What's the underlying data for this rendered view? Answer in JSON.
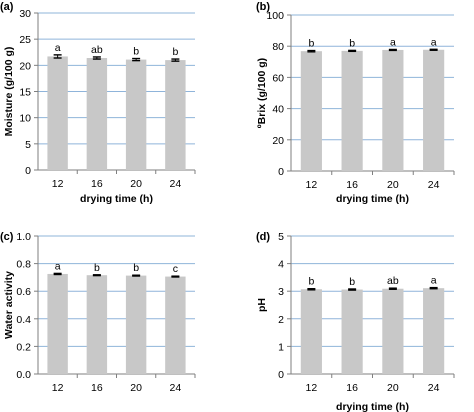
{
  "colors": {
    "bar": "#c8c8c8",
    "gridline": "#8fb4da",
    "axis": "#7f7f7f",
    "errorbar": "#000000"
  },
  "chart_data": [
    {
      "panel": "(a)",
      "type": "bar",
      "categories": [
        "12",
        "16",
        "20",
        "24"
      ],
      "values": [
        21.7,
        21.4,
        21.1,
        21.0
      ],
      "errors": [
        0.3,
        0.2,
        0.2,
        0.2
      ],
      "significance": [
        "a",
        "ab",
        "b",
        "b"
      ],
      "xlabel": "drying time (h)",
      "ylabel": "Moisture (g/100 g)",
      "ylim": [
        0,
        30
      ],
      "yticks": [
        "0",
        "5",
        "10",
        "15",
        "20",
        "25",
        "30"
      ],
      "grid": true
    },
    {
      "panel": "(b)",
      "type": "bar",
      "categories": [
        "12",
        "16",
        "20",
        "24"
      ],
      "values": [
        76.8,
        77.0,
        77.6,
        77.7
      ],
      "errors": [
        0.4,
        0.3,
        0.3,
        0.3
      ],
      "significance": [
        "b",
        "b",
        "a",
        "a"
      ],
      "xlabel": "drying time (h)",
      "ylabel": "ºBrix (g/100 g)",
      "ylim": [
        0,
        100
      ],
      "yticks": [
        "0",
        "20",
        "40",
        "60",
        "80",
        "100"
      ],
      "grid": true
    },
    {
      "panel": "(c)",
      "type": "bar",
      "categories": [
        "12",
        "16",
        "20",
        "24"
      ],
      "values": [
        0.725,
        0.716,
        0.713,
        0.706
      ],
      "errors": [
        0.004,
        0.003,
        0.003,
        0.003
      ],
      "significance": [
        "a",
        "b",
        "b",
        "c"
      ],
      "xlabel": "",
      "ylabel": "Water activity",
      "ylim": [
        0,
        1.0
      ],
      "yticks": [
        "0.0",
        "0.2",
        "0.4",
        "0.6",
        "0.8",
        "1.0"
      ],
      "grid": true
    },
    {
      "panel": "(d)",
      "type": "bar",
      "categories": [
        "12",
        "16",
        "20",
        "24"
      ],
      "values": [
        3.07,
        3.06,
        3.09,
        3.11
      ],
      "errors": [
        0.02,
        0.02,
        0.02,
        0.02
      ],
      "significance": [
        "b",
        "b",
        "ab",
        "a"
      ],
      "xlabel": "drying time (h)",
      "ylabel": "pH",
      "ylim": [
        0,
        5
      ],
      "yticks": [
        "0",
        "1",
        "2",
        "3",
        "4",
        "5"
      ],
      "grid": true
    }
  ]
}
